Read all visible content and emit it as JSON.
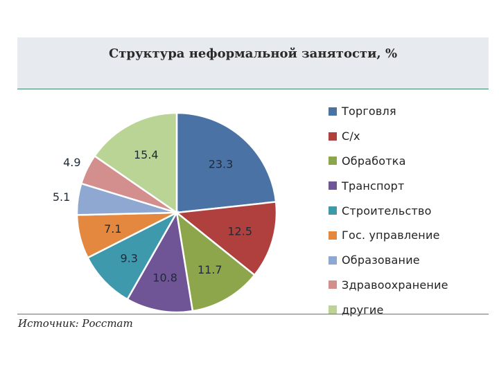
{
  "chart_data": {
    "type": "pie",
    "title": "Структура неформальной занятости, %",
    "categories": [
      "Торговля",
      "С/х",
      "Обработка",
      "Транспорт",
      "Строительство",
      "Гос. управление",
      "Образование",
      "Здравоохранение",
      "другие"
    ],
    "values": [
      23.3,
      12.5,
      11.7,
      10.8,
      9.3,
      7.1,
      5.1,
      4.9,
      15.4
    ],
    "value_labels": [
      "23.3",
      "12.5",
      "11.7",
      "10.8",
      "9.3",
      "7.1",
      "5.1",
      "4.9",
      "15.4"
    ],
    "colors": [
      "#4a72a5",
      "#b0403e",
      "#8ea64b",
      "#6f5596",
      "#3f99ad",
      "#e4883f",
      "#8fa8d2",
      "#d38f8e",
      "#b9d495"
    ],
    "legend_position": "right"
  },
  "source": "Источник: Росстат"
}
